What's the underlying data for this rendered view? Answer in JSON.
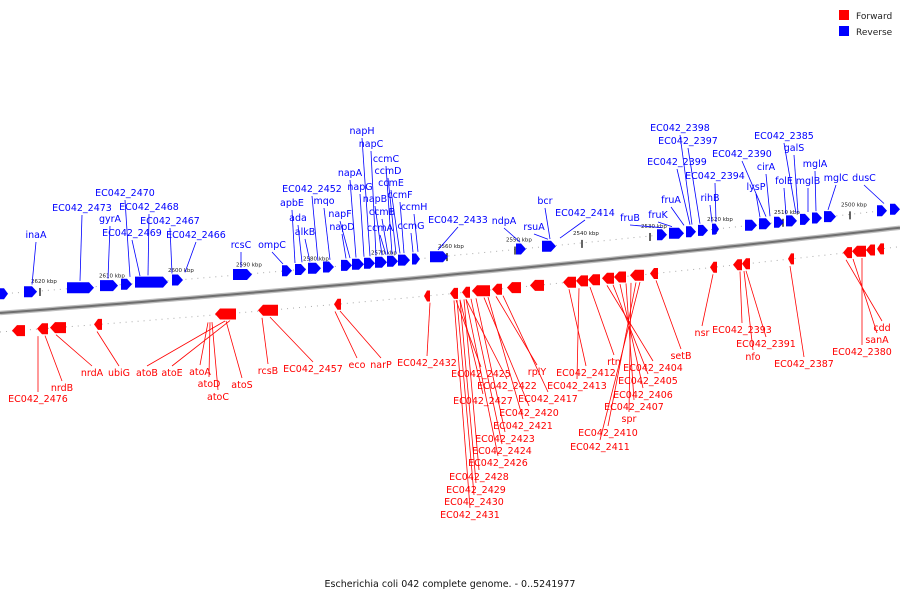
{
  "caption": "Escherichia coli 042 complete genome. - 0..5241977",
  "legend": [
    {
      "label": "Forward",
      "color": "#ff0000"
    },
    {
      "label": "Reverse",
      "color": "#0000ff"
    }
  ],
  "colors": {
    "forward": "#ff0000",
    "reverse": "#0000ff",
    "backbone": "#888888"
  },
  "ticks": [
    "2620 kbp",
    "2610 kbp",
    "2600 kbp",
    "2590 kbp",
    "2580 kbp",
    "2570 kbp",
    "2560 kbp",
    "2550 kbp",
    "2540 kbp",
    "2530 kbp",
    "2520 kbp",
    "2510 kbp",
    "2500 kbp"
  ],
  "reverse_labels": [
    "inaA",
    "EC042_2473",
    "gyrA",
    "EC042_2470",
    "EC042_2469",
    "EC042_2468",
    "EC042_2467",
    "EC042_2466",
    "rcsC",
    "ompC",
    "apbE",
    "ada",
    "alkB",
    "EC042_2452",
    "mqo",
    "napD",
    "napF",
    "napA",
    "napG",
    "napH",
    "napC",
    "napB",
    "ccmA",
    "ccmB",
    "ccmC",
    "ccmD",
    "ccmE",
    "ccmF",
    "ccmG",
    "ccmH",
    "EC042_2433",
    "ndpA",
    "rsuA",
    "bcr",
    "EC042_2414",
    "fruB",
    "fruK",
    "fruA",
    "EC042_2399",
    "EC042_2398",
    "EC042_2397",
    "EC042_2394",
    "rihB",
    "lysP",
    "EC042_2390",
    "cirA",
    "folE",
    "mglB",
    "galS",
    "EC042_2385",
    "mglA",
    "mglC",
    "dusC"
  ],
  "forward_labels": [
    "EC042_2476",
    "nrdB",
    "nrdA",
    "ubiG",
    "atoB",
    "atoE",
    "atoA",
    "atoD",
    "atoC",
    "atoS",
    "rcsB",
    "EC042_2457",
    "eco",
    "narP",
    "EC042_2432",
    "EC042_2425",
    "EC042_2422",
    "EC042_2427",
    "EC042_2417",
    "rplY",
    "EC042_2420",
    "EC042_2421",
    "EC042_2423",
    "EC042_2424",
    "EC042_2426",
    "EC042_2428",
    "EC042_2429",
    "EC042_2430",
    "EC042_2431",
    "EC042_2412",
    "EC042_2413",
    "rtn",
    "EC042_2404",
    "EC042_2405",
    "EC042_2406",
    "EC042_2407",
    "spr",
    "EC042_2410",
    "EC042_2411",
    "setB",
    "nsr",
    "EC042_2393",
    "EC042_2391",
    "nfo",
    "EC042_2387",
    "cdd",
    "sanA",
    "EC042_2380"
  ]
}
